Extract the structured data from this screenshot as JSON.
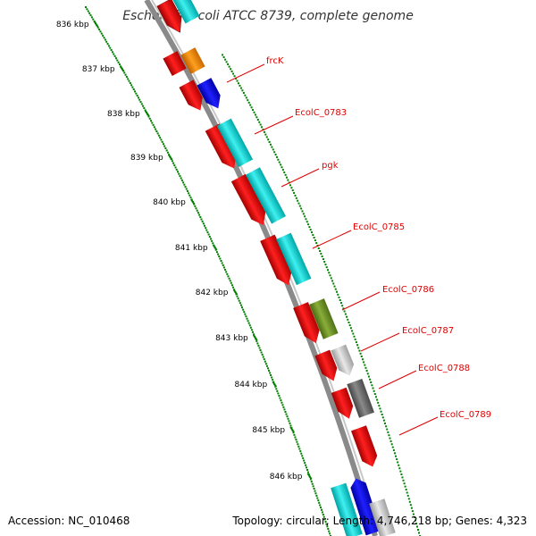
{
  "title": "Escherichia coli ATCC 8739, complete genome",
  "scale_labels": [
    "836 kbp",
    "837 kbp",
    "838 kbp",
    "839 kbp",
    "840 kbp",
    "841 kbp",
    "842 kbp",
    "843 kbp",
    "844 kbp",
    "845 kbp",
    "846 kbp"
  ],
  "gene_labels": [
    "frcK",
    "EcolC_0783",
    "pgk",
    "EcolC_0785",
    "EcolC_0786",
    "EcolC_0787",
    "EcolC_0788",
    "EcolC_0789"
  ],
  "footer": {
    "accession": "Accession: NC_010468",
    "info": "Topology: circular; Length: 4,746,218 bp; Genes: 4,323"
  },
  "colors": {
    "cds": "#ff0000",
    "cyan": "#00d0d0",
    "orange": "#ff8c00",
    "blue": "#0000e0",
    "olive": "#6b8e23",
    "light_gray": "#c8c8c8",
    "dark_gray": "#707070",
    "backbone": "#888888",
    "ticks": "#008000",
    "label_lines": "#e00000"
  }
}
